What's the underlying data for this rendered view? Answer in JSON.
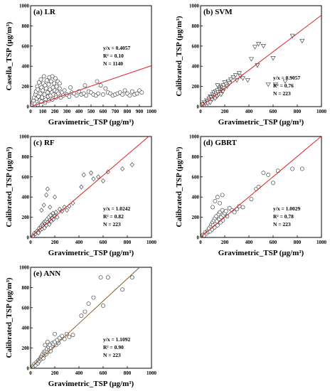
{
  "chart_data": [
    {
      "type": "scatter",
      "title": "(a) LR",
      "xlabel": "Gravimetric_TSP (μg/m³)",
      "ylabel": "Casella_TSP (μg/m³)",
      "xlim": [
        0,
        1000
      ],
      "ylim": [
        0,
        1000
      ],
      "xticks": [
        "0",
        "100",
        "200",
        "300",
        "400",
        "500",
        "600",
        "700",
        "800",
        "900",
        "1000"
      ],
      "yticks": [
        "0",
        "200",
        "400",
        "600",
        "800",
        "1000"
      ],
      "marker": "circle",
      "stats": [
        "y/x = 0.4057",
        "R² = 0.10",
        "N = 1140"
      ],
      "fit_line": {
        "slope": 0.4057,
        "color": "#e02020"
      },
      "points": [
        [
          20,
          40
        ],
        [
          25,
          60
        ],
        [
          30,
          90
        ],
        [
          35,
          30
        ],
        [
          40,
          120
        ],
        [
          45,
          150
        ],
        [
          50,
          80
        ],
        [
          55,
          200
        ],
        [
          60,
          170
        ],
        [
          65,
          100
        ],
        [
          70,
          240
        ],
        [
          75,
          60
        ],
        [
          80,
          130
        ],
        [
          85,
          270
        ],
        [
          90,
          190
        ],
        [
          95,
          90
        ],
        [
          100,
          160
        ],
        [
          105,
          230
        ],
        [
          110,
          300
        ],
        [
          115,
          120
        ],
        [
          120,
          210
        ],
        [
          125,
          70
        ],
        [
          130,
          180
        ],
        [
          135,
          260
        ],
        [
          140,
          140
        ],
        [
          145,
          100
        ],
        [
          150,
          220
        ],
        [
          155,
          290
        ],
        [
          160,
          170
        ],
        [
          165,
          110
        ],
        [
          170,
          250
        ],
        [
          175,
          140
        ],
        [
          180,
          300
        ],
        [
          185,
          190
        ],
        [
          190,
          120
        ],
        [
          195,
          230
        ],
        [
          200,
          160
        ],
        [
          205,
          280
        ],
        [
          210,
          110
        ],
        [
          215,
          200
        ],
        [
          220,
          150
        ],
        [
          225,
          250
        ],
        [
          230,
          130
        ],
        [
          240,
          180
        ],
        [
          250,
          90
        ],
        [
          260,
          140
        ],
        [
          270,
          110
        ],
        [
          280,
          160
        ],
        [
          300,
          120
        ],
        [
          320,
          100
        ],
        [
          340,
          140
        ],
        [
          360,
          130
        ],
        [
          380,
          110
        ],
        [
          400,
          150
        ],
        [
          420,
          120
        ],
        [
          440,
          130
        ],
        [
          460,
          110
        ],
        [
          480,
          150
        ],
        [
          500,
          140
        ],
        [
          520,
          120
        ],
        [
          540,
          110
        ],
        [
          560,
          130
        ],
        [
          580,
          210
        ],
        [
          600,
          120
        ],
        [
          620,
          180
        ],
        [
          640,
          140
        ],
        [
          660,
          130
        ],
        [
          680,
          110
        ],
        [
          700,
          120
        ],
        [
          720,
          130
        ],
        [
          740,
          140
        ],
        [
          760,
          120
        ],
        [
          780,
          160
        ],
        [
          800,
          130
        ],
        [
          820,
          110
        ],
        [
          840,
          150
        ],
        [
          860,
          120
        ],
        [
          880,
          130
        ],
        [
          900,
          160
        ],
        [
          920,
          140
        ],
        [
          60,
          20
        ],
        [
          90,
          50
        ],
        [
          120,
          40
        ],
        [
          150,
          60
        ],
        [
          180,
          70
        ],
        [
          210,
          90
        ],
        [
          240,
          230
        ],
        [
          330,
          190
        ],
        [
          450,
          210
        ],
        [
          550,
          250
        ]
      ]
    },
    {
      "type": "scatter",
      "title": "(b) SVM",
      "xlabel": "Gravimetric_TSP (μg/m³)",
      "ylabel": "Calibrated_TSP (μg/m³)",
      "xlim": [
        0,
        1000
      ],
      "ylim": [
        0,
        1000
      ],
      "xticks": [
        "0",
        "200",
        "400",
        "600",
        "800",
        "1000"
      ],
      "yticks": [
        "0",
        "200",
        "400",
        "600",
        "800",
        "1000"
      ],
      "marker": "triangle-down",
      "stats": [
        "y/x = 0.9057",
        "R² = 0.76",
        "N = 223"
      ],
      "fit_line": {
        "slope": 0.9057,
        "color": "#e02020"
      },
      "points": [
        [
          20,
          20
        ],
        [
          30,
          40
        ],
        [
          40,
          30
        ],
        [
          50,
          60
        ],
        [
          60,
          50
        ],
        [
          70,
          80
        ],
        [
          75,
          60
        ],
        [
          80,
          100
        ],
        [
          90,
          90
        ],
        [
          95,
          70
        ],
        [
          100,
          120
        ],
        [
          105,
          100
        ],
        [
          110,
          140
        ],
        [
          115,
          90
        ],
        [
          120,
          110
        ],
        [
          125,
          150
        ],
        [
          130,
          130
        ],
        [
          135,
          100
        ],
        [
          140,
          160
        ],
        [
          145,
          140
        ],
        [
          150,
          120
        ],
        [
          155,
          180
        ],
        [
          160,
          170
        ],
        [
          165,
          140
        ],
        [
          170,
          200
        ],
        [
          175,
          160
        ],
        [
          180,
          190
        ],
        [
          185,
          150
        ],
        [
          190,
          210
        ],
        [
          195,
          180
        ],
        [
          200,
          240
        ],
        [
          210,
          220
        ],
        [
          220,
          200
        ],
        [
          230,
          250
        ],
        [
          240,
          230
        ],
        [
          250,
          270
        ],
        [
          270,
          290
        ],
        [
          290,
          310
        ],
        [
          300,
          260
        ],
        [
          320,
          330
        ],
        [
          330,
          300
        ],
        [
          350,
          280
        ],
        [
          390,
          260
        ],
        [
          420,
          470
        ],
        [
          450,
          590
        ],
        [
          470,
          410
        ],
        [
          480,
          620
        ],
        [
          520,
          600
        ],
        [
          560,
          220
        ],
        [
          600,
          480
        ],
        [
          620,
          220
        ],
        [
          700,
          250
        ],
        [
          760,
          700
        ],
        [
          840,
          650
        ],
        [
          120,
          80
        ],
        [
          60,
          30
        ],
        [
          140,
          210
        ],
        [
          80,
          40
        ],
        [
          170,
          120
        ]
      ]
    },
    {
      "type": "scatter",
      "title": "(c) RF",
      "xlabel": "Gravimetric_TSP (μg/m³)",
      "ylabel": "Calibrated_TSP (μg/m³)",
      "xlim": [
        0,
        1000
      ],
      "ylim": [
        0,
        1000
      ],
      "xticks": [
        "0",
        "200",
        "400",
        "600",
        "800",
        "1000"
      ],
      "yticks": [
        "0",
        "200",
        "400",
        "600",
        "800",
        "1000"
      ],
      "marker": "diamond",
      "stats": [
        "y/x = 1.0242",
        "R² = 0.82",
        "N = 223"
      ],
      "fit_line": {
        "slope": 1.0242,
        "color": "#e02020"
      },
      "points": [
        [
          20,
          15
        ],
        [
          30,
          40
        ],
        [
          40,
          35
        ],
        [
          50,
          60
        ],
        [
          60,
          55
        ],
        [
          65,
          45
        ],
        [
          70,
          90
        ],
        [
          80,
          75
        ],
        [
          85,
          100
        ],
        [
          90,
          120
        ],
        [
          95,
          85
        ],
        [
          100,
          130
        ],
        [
          105,
          110
        ],
        [
          110,
          150
        ],
        [
          115,
          95
        ],
        [
          120,
          140
        ],
        [
          125,
          160
        ],
        [
          130,
          120
        ],
        [
          135,
          180
        ],
        [
          140,
          150
        ],
        [
          150,
          200
        ],
        [
          155,
          130
        ],
        [
          160,
          170
        ],
        [
          165,
          220
        ],
        [
          170,
          160
        ],
        [
          180,
          190
        ],
        [
          185,
          240
        ],
        [
          190,
          180
        ],
        [
          200,
          210
        ],
        [
          210,
          250
        ],
        [
          220,
          200
        ],
        [
          240,
          280
        ],
        [
          260,
          260
        ],
        [
          280,
          300
        ],
        [
          300,
          270
        ],
        [
          320,
          310
        ],
        [
          350,
          340
        ],
        [
          90,
          270
        ],
        [
          110,
          320
        ],
        [
          130,
          420
        ],
        [
          140,
          480
        ],
        [
          160,
          300
        ],
        [
          200,
          400
        ],
        [
          420,
          500
        ],
        [
          440,
          620
        ],
        [
          500,
          640
        ],
        [
          520,
          580
        ],
        [
          560,
          600
        ],
        [
          600,
          560
        ],
        [
          640,
          650
        ],
        [
          760,
          680
        ],
        [
          840,
          720
        ]
      ]
    },
    {
      "type": "scatter",
      "title": "(d) GBRT",
      "xlabel": "Gravimetric_TSP (μg/m³)",
      "ylabel": "Calibrated_TSP (μg/m³)",
      "xlim": [
        0,
        1000
      ],
      "ylim": [
        0,
        1000
      ],
      "xticks": [
        "0",
        "200",
        "400",
        "600",
        "800",
        "1000"
      ],
      "yticks": [
        "0",
        "200",
        "400",
        "600",
        "800",
        "1000"
      ],
      "marker": "circle",
      "stats": [
        "y/x = 1.0029",
        "R² = 0.78",
        "N = 223"
      ],
      "fit_line": {
        "slope": 1.0029,
        "color": "#e02020"
      },
      "points": [
        [
          20,
          25
        ],
        [
          30,
          20
        ],
        [
          40,
          50
        ],
        [
          50,
          40
        ],
        [
          60,
          70
        ],
        [
          65,
          55
        ],
        [
          70,
          90
        ],
        [
          80,
          60
        ],
        [
          85,
          110
        ],
        [
          90,
          130
        ],
        [
          95,
          80
        ],
        [
          100,
          150
        ],
        [
          105,
          120
        ],
        [
          110,
          170
        ],
        [
          115,
          100
        ],
        [
          120,
          190
        ],
        [
          125,
          140
        ],
        [
          130,
          210
        ],
        [
          135,
          160
        ],
        [
          140,
          120
        ],
        [
          150,
          230
        ],
        [
          155,
          180
        ],
        [
          160,
          250
        ],
        [
          165,
          150
        ],
        [
          170,
          200
        ],
        [
          180,
          270
        ],
        [
          185,
          170
        ],
        [
          190,
          220
        ],
        [
          200,
          240
        ],
        [
          210,
          260
        ],
        [
          220,
          210
        ],
        [
          240,
          290
        ],
        [
          260,
          270
        ],
        [
          280,
          250
        ],
        [
          300,
          280
        ],
        [
          320,
          310
        ],
        [
          350,
          300
        ],
        [
          100,
          300
        ],
        [
          120,
          360
        ],
        [
          140,
          400
        ],
        [
          160,
          340
        ],
        [
          180,
          420
        ],
        [
          420,
          380
        ],
        [
          460,
          480
        ],
        [
          480,
          500
        ],
        [
          520,
          640
        ],
        [
          560,
          620
        ],
        [
          600,
          540
        ],
        [
          640,
          660
        ],
        [
          760,
          680
        ],
        [
          840,
          680
        ]
      ]
    },
    {
      "type": "scatter",
      "title": "(e) ANN",
      "xlabel": "Gravimetric_TSP (μg/m³)",
      "ylabel": "Calibrated_TSP (μg/m³)",
      "xlim": [
        0,
        1000
      ],
      "ylim": [
        0,
        1000
      ],
      "xticks": [
        "0",
        "200",
        "400",
        "600",
        "800",
        "1000"
      ],
      "yticks": [
        "0",
        "200",
        "400",
        "600",
        "800",
        "1000"
      ],
      "marker": "circle",
      "stats": [
        "y/x = 1.1092",
        "R² = 0.90",
        "N = 223"
      ],
      "fit_line": {
        "slope": 1.1092,
        "color": "#8a5a2b"
      },
      "points": [
        [
          20,
          20
        ],
        [
          30,
          40
        ],
        [
          40,
          30
        ],
        [
          50,
          60
        ],
        [
          60,
          50
        ],
        [
          65,
          80
        ],
        [
          70,
          70
        ],
        [
          80,
          100
        ],
        [
          85,
          90
        ],
        [
          90,
          120
        ],
        [
          95,
          110
        ],
        [
          100,
          140
        ],
        [
          105,
          100
        ],
        [
          110,
          160
        ],
        [
          115,
          130
        ],
        [
          120,
          150
        ],
        [
          125,
          170
        ],
        [
          130,
          140
        ],
        [
          135,
          190
        ],
        [
          140,
          160
        ],
        [
          150,
          210
        ],
        [
          155,
          180
        ],
        [
          160,
          230
        ],
        [
          165,
          170
        ],
        [
          170,
          200
        ],
        [
          180,
          250
        ],
        [
          185,
          220
        ],
        [
          190,
          240
        ],
        [
          200,
          260
        ],
        [
          210,
          230
        ],
        [
          220,
          280
        ],
        [
          230,
          250
        ],
        [
          240,
          300
        ],
        [
          260,
          320
        ],
        [
          280,
          290
        ],
        [
          300,
          340
        ],
        [
          320,
          310
        ],
        [
          350,
          330
        ],
        [
          120,
          230
        ],
        [
          140,
          260
        ],
        [
          200,
          340
        ],
        [
          420,
          520
        ],
        [
          450,
          560
        ],
        [
          480,
          640
        ],
        [
          520,
          700
        ],
        [
          580,
          900
        ],
        [
          600,
          620
        ],
        [
          640,
          900
        ],
        [
          760,
          780
        ],
        [
          840,
          900
        ]
      ]
    }
  ]
}
